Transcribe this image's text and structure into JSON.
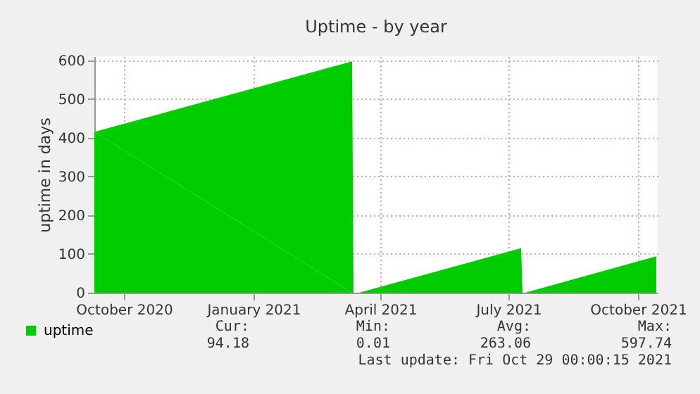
{
  "chart_data": {
    "type": "area",
    "title": "Uptime - by year",
    "ylabel": "uptime in days",
    "x": [
      "2020-09-10",
      "2021-03-12",
      "2021-03-13",
      "2021-03-17",
      "2021-07-10",
      "2021-07-11",
      "2021-07-13",
      "2021-10-14"
    ],
    "series": [
      {
        "name": "uptime",
        "color": "#00cc00",
        "values": [
          415,
          597,
          null,
          0,
          115,
          null,
          0,
          94
        ]
      }
    ],
    "xlim": [
      "2020-09-10",
      "2021-10-15"
    ],
    "xticks": [
      {
        "value": "2020-10-01",
        "label": "October 2020"
      },
      {
        "value": "2021-01-01",
        "label": "January 2021"
      },
      {
        "value": "2021-04-01",
        "label": "April 2021"
      },
      {
        "value": "2021-07-01",
        "label": "July 2021"
      },
      {
        "value": "2021-10-01",
        "label": "October 2021"
      }
    ],
    "ylim": [
      0,
      610
    ],
    "yticks": [
      0,
      100,
      200,
      300,
      400,
      500,
      600
    ],
    "grid": true,
    "legend": "bottom left",
    "annotations": [
      "Cur:",
      "Min:",
      "Avg:",
      "Max:",
      "94.18",
      "0.01",
      "263.06",
      "597.74",
      "Last update: Fri Oct 29 00:00:15 2021"
    ]
  }
}
